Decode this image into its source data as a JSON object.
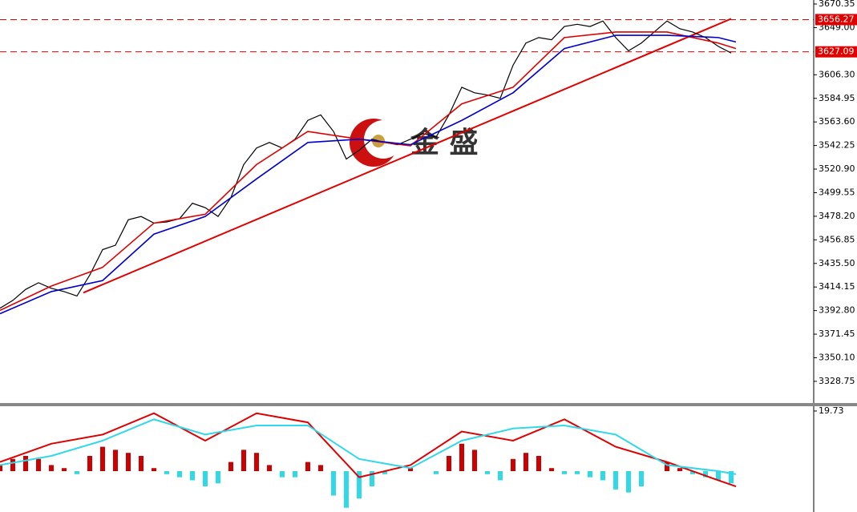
{
  "chart_data": [
    {
      "type": "line",
      "xlim": [
        0,
        1015
      ],
      "ylim": [
        3309.1,
        3674.0
      ],
      "yticks": [
        3670.35,
        {
          "value": 3649.0,
          "label": "3649.00"
        },
        {
          "value": 3606.3,
          "label": "3606.30"
        },
        3584.95,
        {
          "value": 3563.6,
          "label": "3563.60"
        },
        3542.25,
        {
          "value": 3520.9,
          "label": "3520.90"
        },
        3499.55,
        {
          "value": 3478.2,
          "label": "3478.20"
        },
        3456.85,
        {
          "value": 3435.5,
          "label": "3435.50"
        },
        3414.15,
        {
          "value": 3392.8,
          "label": "3392.80"
        },
        3371.45,
        {
          "value": 3350.1,
          "label": "3350.10"
        },
        3328.75
      ],
      "levels": [
        3656.27,
        3627.09
      ],
      "level_color": "#e00000",
      "trendline": {
        "x": [
          104,
          912
        ],
        "y": [
          3409,
          3657
        ],
        "color": "#e00000"
      },
      "watermark": "金 盛",
      "series": [
        {
          "color": "#000000",
          "x": [
            0,
            16,
            32,
            48,
            64,
            80,
            96,
            112,
            128,
            144,
            160,
            176,
            192,
            208,
            224,
            240,
            256,
            272,
            288,
            304,
            320,
            336,
            352,
            368,
            384,
            400,
            416,
            432,
            448,
            464,
            480,
            496,
            512,
            528,
            544,
            560,
            576,
            592,
            608,
            624,
            640,
            656,
            672,
            688,
            704,
            720,
            736,
            752,
            768,
            784,
            800,
            816,
            832,
            848,
            864,
            880,
            896,
            912
          ],
          "values": [
            3395,
            3402,
            3412,
            3418,
            3413,
            3410,
            3406,
            3425,
            3448,
            3452,
            3475,
            3478,
            3472,
            3473,
            3476,
            3490,
            3486,
            3478,
            3495,
            3525,
            3540,
            3545,
            3540,
            3548,
            3565,
            3570,
            3555,
            3530,
            3538,
            3548,
            3545,
            3543,
            3548,
            3553,
            3550,
            3570,
            3595,
            3590,
            3588,
            3585,
            3615,
            3635,
            3640,
            3638,
            3650,
            3652,
            3650,
            3655,
            3640,
            3628,
            3635,
            3645,
            3655,
            3648,
            3645,
            3640,
            3632,
            3626
          ]
        },
        {
          "color": "#dd0000",
          "x": [
            0,
            64,
            128,
            192,
            256,
            320,
            384,
            448,
            512,
            576,
            640,
            704,
            768,
            832,
            896,
            918
          ],
          "values": [
            3393,
            3415,
            3432,
            3472,
            3480,
            3525,
            3555,
            3548,
            3542,
            3580,
            3595,
            3640,
            3645,
            3645,
            3635,
            3630
          ]
        },
        {
          "color": "#0000cc",
          "x": [
            0,
            64,
            128,
            192,
            256,
            320,
            384,
            448,
            512,
            576,
            640,
            704,
            768,
            832,
            896,
            918
          ],
          "values": [
            3390,
            3410,
            3420,
            3462,
            3478,
            3512,
            3545,
            3548,
            3543,
            3565,
            3590,
            3630,
            3642,
            3642,
            3640,
            3636
          ]
        }
      ]
    },
    {
      "type": "macd",
      "xlim": [
        0,
        1015
      ],
      "ylim": [
        -13.4,
        21.3
      ],
      "yticks": [
        19.73
      ],
      "hist_colors": {
        "positive": "#cc0000",
        "negative": "#30d8e8"
      },
      "hist_x": [
        0,
        16,
        32,
        48,
        64,
        80,
        96,
        112,
        128,
        144,
        160,
        176,
        192,
        208,
        224,
        240,
        256,
        272,
        288,
        304,
        320,
        336,
        352,
        368,
        384,
        400,
        416,
        432,
        448,
        464,
        480,
        496,
        512,
        528,
        544,
        560,
        576,
        592,
        608,
        624,
        640,
        656,
        672,
        688,
        704,
        720,
        736,
        752,
        768,
        784,
        800,
        816,
        832,
        848,
        864,
        880,
        896,
        912
      ],
      "hist": [
        2,
        4,
        5,
        4,
        2,
        1,
        -1,
        5,
        8,
        7,
        6,
        5,
        1,
        -1,
        -2,
        -3,
        -5,
        -4,
        3,
        7,
        6,
        2,
        -2,
        -2,
        3,
        2,
        -8,
        -12,
        -9,
        -5,
        -1,
        0,
        1,
        0,
        -1,
        5,
        9,
        7,
        -1,
        -3,
        4,
        6,
        5,
        1,
        -1,
        -1,
        -2,
        -3,
        -6,
        -7,
        -5,
        0,
        3,
        1,
        -1,
        -2,
        -3,
        -4
      ],
      "series": [
        {
          "color": "#dd0000",
          "x": [
            0,
            64,
            128,
            192,
            256,
            320,
            384,
            448,
            512,
            576,
            640,
            704,
            768,
            832,
            896,
            918
          ],
          "values": [
            3,
            9,
            12,
            19,
            10,
            19,
            16,
            -2,
            2,
            13,
            10,
            17,
            8,
            3,
            -3,
            -5
          ]
        },
        {
          "color": "#30d8e8",
          "x": [
            0,
            64,
            128,
            192,
            256,
            320,
            384,
            448,
            512,
            576,
            640,
            704,
            768,
            832,
            896,
            918
          ],
          "values": [
            2,
            5,
            10,
            17,
            12,
            15,
            15,
            4,
            1,
            10,
            14,
            15,
            12,
            2,
            0,
            -1
          ]
        }
      ]
    }
  ]
}
